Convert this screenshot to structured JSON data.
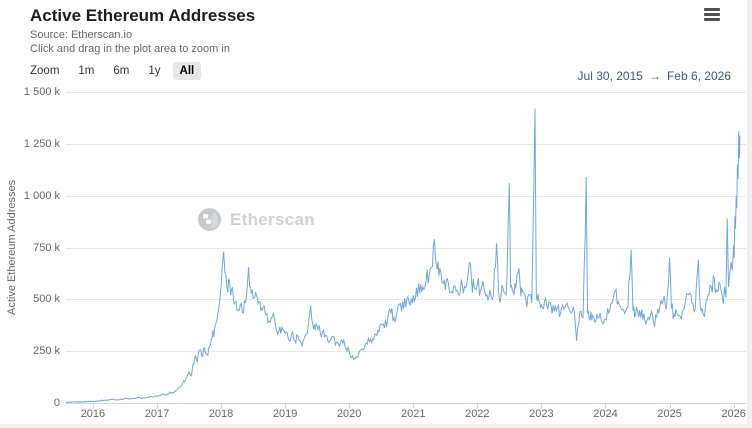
{
  "header": {
    "title": "Active Ethereum Addresses",
    "source": "Source: Etherscan.io",
    "hint": "Click and drag in the plot area to zoom in"
  },
  "toolbar": {
    "zoom_label": "Zoom",
    "range_buttons": [
      {
        "label": "1m",
        "selected": false
      },
      {
        "label": "6m",
        "selected": false
      },
      {
        "label": "1y",
        "selected": false
      },
      {
        "label": "All",
        "selected": true
      }
    ],
    "range_from": "Jul 30, 2015",
    "range_arrow": "→",
    "range_to": "Feb 6, 2026"
  },
  "watermark": {
    "text": "Etherscan"
  },
  "chart_data": {
    "type": "line",
    "title": "Active Ethereum Addresses",
    "xlabel": "",
    "ylabel": "Active Ethereum Addresses",
    "unit": "thousands of addresses (k)",
    "legend": "none",
    "grid": "horizontal",
    "line_color": "#6fa8e0",
    "axis_color": "#ccd6eb",
    "grid_color": "#e8e8e8",
    "x_range": [
      2015.58,
      2026.1
    ],
    "y_range": [
      0,
      1500
    ],
    "yticks": {
      "values": [
        0,
        250,
        500,
        750,
        1000,
        1250,
        1500
      ],
      "labels": [
        "0",
        "250 k",
        "500 k",
        "750 k",
        "1 000 k",
        "1 250 k",
        "1 500 k"
      ]
    },
    "xticks": {
      "values": [
        2016,
        2017,
        2018,
        2019,
        2020,
        2021,
        2022,
        2023,
        2024,
        2025,
        2026
      ],
      "labels": [
        "2016",
        "2017",
        "2018",
        "2019",
        "2020",
        "2021",
        "2022",
        "2023",
        "2024",
        "2025",
        "2026"
      ]
    },
    "render": {
      "noise_scale": 0.08,
      "noise_min_k": 2.5
    },
    "series": [
      {
        "name": "Active Ethereum Addresses",
        "points": [
          [
            2015.58,
            2
          ],
          [
            2015.7,
            4
          ],
          [
            2015.85,
            6
          ],
          [
            2016.0,
            8
          ],
          [
            2016.1,
            11
          ],
          [
            2016.2,
            13
          ],
          [
            2016.3,
            18
          ],
          [
            2016.4,
            15
          ],
          [
            2016.5,
            22
          ],
          [
            2016.6,
            19
          ],
          [
            2016.7,
            26
          ],
          [
            2016.8,
            23
          ],
          [
            2016.9,
            29
          ],
          [
            2017.0,
            33
          ],
          [
            2017.1,
            42
          ],
          [
            2017.15,
            38
          ],
          [
            2017.2,
            52
          ],
          [
            2017.25,
            47
          ],
          [
            2017.3,
            62
          ],
          [
            2017.35,
            75
          ],
          [
            2017.4,
            95
          ],
          [
            2017.45,
            115
          ],
          [
            2017.5,
            150
          ],
          [
            2017.53,
            130
          ],
          [
            2017.56,
            185
          ],
          [
            2017.6,
            230
          ],
          [
            2017.63,
            200
          ],
          [
            2017.66,
            255
          ],
          [
            2017.7,
            225
          ],
          [
            2017.74,
            265
          ],
          [
            2017.78,
            235
          ],
          [
            2017.82,
            275
          ],
          [
            2017.86,
            315
          ],
          [
            2017.9,
            360
          ],
          [
            2017.95,
            430
          ],
          [
            2018.0,
            560
          ],
          [
            2018.02,
            660
          ],
          [
            2018.04,
            730
          ],
          [
            2018.06,
            630
          ],
          [
            2018.09,
            560
          ],
          [
            2018.12,
            600
          ],
          [
            2018.15,
            520
          ],
          [
            2018.18,
            555
          ],
          [
            2018.22,
            485
          ],
          [
            2018.26,
            445
          ],
          [
            2018.3,
            475
          ],
          [
            2018.35,
            435
          ],
          [
            2018.4,
            525
          ],
          [
            2018.43,
            655
          ],
          [
            2018.46,
            560
          ],
          [
            2018.5,
            505
          ],
          [
            2018.54,
            535
          ],
          [
            2018.58,
            480
          ],
          [
            2018.62,
            445
          ],
          [
            2018.66,
            465
          ],
          [
            2018.7,
            425
          ],
          [
            2018.75,
            395
          ],
          [
            2018.8,
            415
          ],
          [
            2018.85,
            375
          ],
          [
            2018.9,
            345
          ],
          [
            2018.95,
            365
          ],
          [
            2019.0,
            335
          ],
          [
            2019.05,
            310
          ],
          [
            2019.1,
            332
          ],
          [
            2019.15,
            302
          ],
          [
            2019.2,
            322
          ],
          [
            2019.25,
            292
          ],
          [
            2019.3,
            312
          ],
          [
            2019.35,
            342
          ],
          [
            2019.4,
            470
          ],
          [
            2019.43,
            382
          ],
          [
            2019.47,
            352
          ],
          [
            2019.5,
            372
          ],
          [
            2019.55,
            335
          ],
          [
            2019.6,
            352
          ],
          [
            2019.65,
            322
          ],
          [
            2019.7,
            302
          ],
          [
            2019.75,
            322
          ],
          [
            2019.8,
            292
          ],
          [
            2019.85,
            272
          ],
          [
            2019.9,
            290
          ],
          [
            2019.95,
            262
          ],
          [
            2020.0,
            248
          ],
          [
            2020.05,
            228
          ],
          [
            2020.1,
            215
          ],
          [
            2020.15,
            240
          ],
          [
            2020.2,
            262
          ],
          [
            2020.25,
            282
          ],
          [
            2020.3,
            312
          ],
          [
            2020.35,
            292
          ],
          [
            2020.4,
            332
          ],
          [
            2020.45,
            352
          ],
          [
            2020.5,
            382
          ],
          [
            2020.55,
            362
          ],
          [
            2020.6,
            402
          ],
          [
            2020.65,
            432
          ],
          [
            2020.7,
            412
          ],
          [
            2020.75,
            442
          ],
          [
            2020.8,
            480
          ],
          [
            2020.85,
            455
          ],
          [
            2020.9,
            500
          ],
          [
            2020.95,
            470
          ],
          [
            2021.0,
            520
          ],
          [
            2021.05,
            555
          ],
          [
            2021.1,
            530
          ],
          [
            2021.15,
            560
          ],
          [
            2021.2,
            590
          ],
          [
            2021.25,
            620
          ],
          [
            2021.3,
            660
          ],
          [
            2021.33,
            790
          ],
          [
            2021.36,
            670
          ],
          [
            2021.4,
            615
          ],
          [
            2021.45,
            580
          ],
          [
            2021.5,
            545
          ],
          [
            2021.55,
            572
          ],
          [
            2021.6,
            538
          ],
          [
            2021.65,
            565
          ],
          [
            2021.7,
            532
          ],
          [
            2021.75,
            595
          ],
          [
            2021.8,
            562
          ],
          [
            2021.85,
            605
          ],
          [
            2021.88,
            680
          ],
          [
            2021.91,
            585
          ],
          [
            2021.95,
            560
          ],
          [
            2022.0,
            572
          ],
          [
            2022.05,
            542
          ],
          [
            2022.1,
            562
          ],
          [
            2022.15,
            522
          ],
          [
            2022.2,
            545
          ],
          [
            2022.25,
            515
          ],
          [
            2022.3,
            770
          ],
          [
            2022.33,
            545
          ],
          [
            2022.37,
            515
          ],
          [
            2022.4,
            558
          ],
          [
            2022.45,
            522
          ],
          [
            2022.5,
            1060
          ],
          [
            2022.52,
            560
          ],
          [
            2022.56,
            532
          ],
          [
            2022.6,
            552
          ],
          [
            2022.65,
            650
          ],
          [
            2022.68,
            515
          ],
          [
            2022.72,
            532
          ],
          [
            2022.76,
            492
          ],
          [
            2022.8,
            522
          ],
          [
            2022.85,
            482
          ],
          [
            2022.9,
            1420
          ],
          [
            2022.92,
            522
          ],
          [
            2022.96,
            492
          ],
          [
            2023.0,
            472
          ],
          [
            2023.05,
            492
          ],
          [
            2023.1,
            452
          ],
          [
            2023.15,
            472
          ],
          [
            2023.2,
            442
          ],
          [
            2023.25,
            462
          ],
          [
            2023.3,
            432
          ],
          [
            2023.35,
            452
          ],
          [
            2023.4,
            482
          ],
          [
            2023.45,
            442
          ],
          [
            2023.5,
            462
          ],
          [
            2023.55,
            300
          ],
          [
            2023.6,
            440
          ],
          [
            2023.65,
            412
          ],
          [
            2023.7,
            1090
          ],
          [
            2023.72,
            432
          ],
          [
            2023.76,
            402
          ],
          [
            2023.8,
            422
          ],
          [
            2023.85,
            392
          ],
          [
            2023.9,
            412
          ],
          [
            2023.95,
            385
          ],
          [
            2024.0,
            405
          ],
          [
            2024.05,
            435
          ],
          [
            2024.1,
            480
          ],
          [
            2024.15,
            540
          ],
          [
            2024.2,
            490
          ],
          [
            2024.25,
            452
          ],
          [
            2024.3,
            432
          ],
          [
            2024.35,
            462
          ],
          [
            2024.4,
            740
          ],
          [
            2024.43,
            445
          ],
          [
            2024.47,
            422
          ],
          [
            2024.5,
            445
          ],
          [
            2024.55,
            412
          ],
          [
            2024.6,
            432
          ],
          [
            2024.65,
            402
          ],
          [
            2024.7,
            422
          ],
          [
            2024.75,
            392
          ],
          [
            2024.8,
            415
          ],
          [
            2024.85,
            462
          ],
          [
            2024.9,
            492
          ],
          [
            2024.95,
            452
          ],
          [
            2025.0,
            700
          ],
          [
            2025.03,
            455
          ],
          [
            2025.07,
            432
          ],
          [
            2025.1,
            452
          ],
          [
            2025.15,
            422
          ],
          [
            2025.2,
            445
          ],
          [
            2025.25,
            492
          ],
          [
            2025.3,
            522
          ],
          [
            2025.35,
            482
          ],
          [
            2025.4,
            452
          ],
          [
            2025.45,
            690
          ],
          [
            2025.48,
            462
          ],
          [
            2025.52,
            432
          ],
          [
            2025.56,
            462
          ],
          [
            2025.6,
            522
          ],
          [
            2025.65,
            562
          ],
          [
            2025.7,
            602
          ],
          [
            2025.73,
            545
          ],
          [
            2025.77,
            582
          ],
          [
            2025.8,
            552
          ],
          [
            2025.82,
            520
          ],
          [
            2025.84,
            480
          ],
          [
            2025.86,
            560
          ],
          [
            2025.88,
            510
          ],
          [
            2025.9,
            890
          ],
          [
            2025.92,
            560
          ],
          [
            2025.94,
            620
          ],
          [
            2025.96,
            680
          ],
          [
            2025.98,
            640
          ],
          [
            2026.0,
            760
          ],
          [
            2026.01,
            700
          ],
          [
            2026.02,
            900
          ],
          [
            2026.03,
            840
          ],
          [
            2026.04,
            1000
          ],
          [
            2026.05,
            940
          ],
          [
            2026.06,
            1150
          ],
          [
            2026.07,
            1080
          ],
          [
            2026.08,
            1310
          ],
          [
            2026.09,
            1180
          ],
          [
            2026.1,
            1290
          ]
        ]
      }
    ]
  }
}
